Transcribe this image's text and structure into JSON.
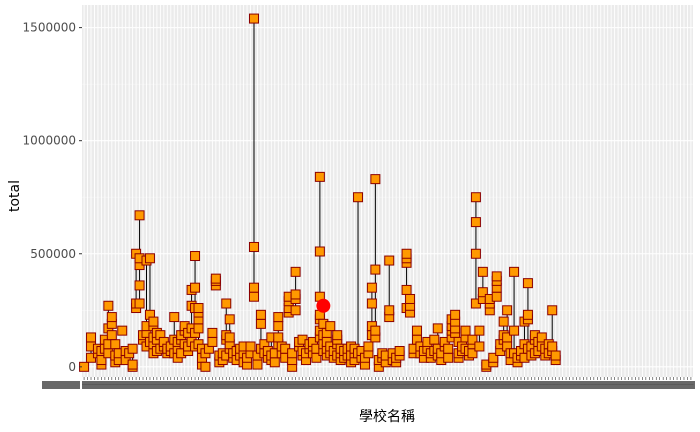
{
  "chart_data": {
    "type": "scatter",
    "title": "",
    "xlabel": "學校名稱",
    "ylabel": "total",
    "ylim": [
      -45000,
      1600000
    ],
    "yticks": [
      0,
      500000,
      1000000,
      1500000
    ],
    "ytick_labels": [
      "0",
      "500000",
      "1000000",
      "1500000"
    ],
    "x_category_count": 176,
    "x_category_label_placeholder": "一",
    "grid": true,
    "legend": "none",
    "colors": {
      "panel": "#ebebeb",
      "grid_major": "#ffffff",
      "grid_minor": "#f5f5f5",
      "point_fill": "#ff9900",
      "point_edge": "#8b0000",
      "range_line": "#000000",
      "highlight": "#ff0000"
    },
    "highlight_point": {
      "x": 70,
      "y": 270000
    },
    "schools": [
      {
        "x": 1,
        "values": [
          0
        ]
      },
      {
        "x": 3,
        "values": [
          40000,
          90000,
          130000
        ]
      },
      {
        "x": 5,
        "values": [
          60000,
          80000
        ]
      },
      {
        "x": 6,
        "values": [
          10000,
          30000,
          70000
        ]
      },
      {
        "x": 7,
        "values": [
          80000,
          120000
        ]
      },
      {
        "x": 8,
        "values": [
          60000,
          100000,
          170000,
          270000
        ]
      },
      {
        "x": 9,
        "values": [
          140000,
          190000,
          220000
        ]
      },
      {
        "x": 10,
        "values": [
          20000,
          50000,
          100000
        ]
      },
      {
        "x": 11,
        "values": [
          30000,
          60000
        ]
      },
      {
        "x": 12,
        "values": [
          160000
        ]
      },
      {
        "x": 13,
        "values": [
          30000,
          70000
        ]
      },
      {
        "x": 14,
        "values": [
          60000
        ]
      },
      {
        "x": 15,
        "values": [
          0,
          10000,
          80000
        ]
      },
      {
        "x": 16,
        "values": [
          260000,
          280000,
          500000
        ]
      },
      {
        "x": 17,
        "values": [
          280000,
          360000,
          450000,
          480000,
          670000
        ]
      },
      {
        "x": 18,
        "values": [
          120000,
          140000
        ]
      },
      {
        "x": 19,
        "values": [
          90000,
          150000,
          180000,
          470000
        ]
      },
      {
        "x": 20,
        "values": [
          110000,
          230000,
          480000
        ]
      },
      {
        "x": 21,
        "values": [
          60000,
          100000,
          130000,
          180000,
          200000
        ]
      },
      {
        "x": 22,
        "values": [
          70000,
          120000,
          150000
        ]
      },
      {
        "x": 23,
        "values": [
          80000,
          140000
        ]
      },
      {
        "x": 24,
        "values": [
          90000,
          110000
        ]
      },
      {
        "x": 25,
        "values": [
          60000,
          80000
        ]
      },
      {
        "x": 26,
        "values": [
          70000,
          90000
        ]
      },
      {
        "x": 27,
        "values": [
          60000,
          120000,
          220000
        ]
      },
      {
        "x": 28,
        "values": [
          40000,
          80000,
          110000
        ]
      },
      {
        "x": 29,
        "values": [
          60000,
          120000,
          140000
        ]
      },
      {
        "x": 30,
        "values": [
          100000,
          160000,
          180000
        ]
      },
      {
        "x": 31,
        "values": [
          70000,
          90000,
          150000
        ]
      },
      {
        "x": 32,
        "values": [
          110000,
          170000,
          270000,
          340000
        ]
      },
      {
        "x": 33,
        "values": [
          90000,
          150000,
          260000,
          350000,
          490000
        ]
      },
      {
        "x": 34,
        "values": [
          100000,
          170000,
          210000,
          240000,
          260000
        ]
      },
      {
        "x": 35,
        "values": [
          10000,
          40000,
          80000
        ]
      },
      {
        "x": 36,
        "values": [
          0,
          60000
        ]
      },
      {
        "x": 37,
        "values": [
          80000
        ]
      },
      {
        "x": 38,
        "values": [
          110000,
          150000
        ]
      },
      {
        "x": 39,
        "values": [
          360000,
          380000,
          390000
        ]
      },
      {
        "x": 40,
        "values": [
          20000,
          50000
        ]
      },
      {
        "x": 41,
        "values": [
          30000,
          60000
        ]
      },
      {
        "x": 42,
        "values": [
          50000,
          120000,
          140000,
          280000
        ]
      },
      {
        "x": 43,
        "values": [
          80000,
          100000,
          130000,
          210000
        ]
      },
      {
        "x": 44,
        "values": [
          40000,
          60000
        ]
      },
      {
        "x": 45,
        "values": [
          30000,
          70000
        ]
      },
      {
        "x": 46,
        "values": [
          50000,
          80000
        ]
      },
      {
        "x": 47,
        "values": [
          20000,
          60000,
          90000
        ]
      },
      {
        "x": 48,
        "values": [
          10000,
          40000
        ]
      },
      {
        "x": 49,
        "values": [
          60000,
          90000
        ]
      },
      {
        "x": 50,
        "values": [
          310000,
          350000,
          530000,
          1540000
        ]
      },
      {
        "x": 51,
        "values": [
          10000,
          50000
        ]
      },
      {
        "x": 52,
        "values": [
          80000,
          190000,
          230000
        ]
      },
      {
        "x": 53,
        "values": [
          60000,
          100000
        ]
      },
      {
        "x": 54,
        "values": [
          40000,
          70000
        ]
      },
      {
        "x": 55,
        "values": [
          30000,
          50000,
          130000
        ]
      },
      {
        "x": 56,
        "values": [
          20000,
          60000
        ]
      },
      {
        "x": 57,
        "values": [
          100000,
          130000,
          180000,
          220000
        ]
      },
      {
        "x": 58,
        "values": [
          60000,
          90000
        ]
      },
      {
        "x": 59,
        "values": [
          40000,
          80000
        ]
      },
      {
        "x": 60,
        "values": [
          240000,
          260000,
          290000,
          310000
        ]
      },
      {
        "x": 61,
        "values": [
          0,
          30000,
          60000
        ]
      },
      {
        "x": 62,
        "values": [
          250000,
          300000,
          320000,
          420000
        ]
      },
      {
        "x": 63,
        "values": [
          90000,
          110000
        ]
      },
      {
        "x": 64,
        "values": [
          50000,
          70000,
          120000
        ]
      },
      {
        "x": 65,
        "values": [
          30000,
          60000
        ]
      },
      {
        "x": 66,
        "values": [
          80000,
          100000
        ]
      },
      {
        "x": 67,
        "values": [
          60000,
          90000,
          110000
        ]
      },
      {
        "x": 68,
        "values": [
          40000,
          80000
        ]
      },
      {
        "x": 69,
        "values": [
          130000,
          160000,
          210000,
          230000,
          310000,
          510000,
          840000
        ]
      },
      {
        "x": 70,
        "values": [
          70000,
          100000,
          140000,
          190000
        ]
      },
      {
        "x": 71,
        "values": [
          50000,
          80000,
          110000,
          150000
        ]
      },
      {
        "x": 72,
        "values": [
          60000,
          90000,
          180000
        ]
      },
      {
        "x": 73,
        "values": [
          40000,
          70000
        ]
      },
      {
        "x": 74,
        "values": [
          50000,
          100000,
          120000,
          140000
        ]
      },
      {
        "x": 75,
        "values": [
          30000,
          60000,
          80000
        ]
      },
      {
        "x": 76,
        "values": [
          40000,
          70000
        ]
      },
      {
        "x": 77,
        "values": [
          50000,
          80000
        ]
      },
      {
        "x": 78,
        "values": [
          20000,
          50000,
          90000
        ]
      },
      {
        "x": 79,
        "values": [
          30000,
          60000,
          80000
        ]
      },
      {
        "x": 80,
        "values": [
          60000,
          750000
        ]
      },
      {
        "x": 81,
        "values": [
          40000,
          70000
        ]
      },
      {
        "x": 82,
        "values": [
          10000,
          40000
        ]
      },
      {
        "x": 83,
        "values": [
          60000,
          90000
        ]
      },
      {
        "x": 84,
        "values": [
          140000,
          180000,
          280000,
          350000
        ]
      },
      {
        "x": 85,
        "values": [
          130000,
          160000,
          430000,
          830000
        ]
      },
      {
        "x": 86,
        "values": [
          0,
          30000
        ]
      },
      {
        "x": 87,
        "values": [
          40000,
          60000
        ]
      },
      {
        "x": 88,
        "values": [
          20000,
          50000
        ]
      },
      {
        "x": 89,
        "values": [
          220000,
          250000,
          470000
        ]
      },
      {
        "x": 90,
        "values": [
          30000,
          60000
        ]
      },
      {
        "x": 91,
        "values": [
          20000,
          40000
        ]
      },
      {
        "x": 92,
        "values": [
          50000,
          70000
        ]
      },
      {
        "x": 94,
        "values": [
          260000,
          340000,
          460000,
          480000,
          500000
        ]
      },
      {
        "x": 95,
        "values": [
          240000,
          270000,
          300000
        ]
      },
      {
        "x": 96,
        "values": [
          60000,
          80000
        ]
      },
      {
        "x": 97,
        "values": [
          120000,
          160000
        ]
      },
      {
        "x": 98,
        "values": [
          60000,
          90000
        ]
      },
      {
        "x": 99,
        "values": [
          40000,
          70000
        ]
      },
      {
        "x": 100,
        "values": [
          80000,
          110000
        ]
      },
      {
        "x": 101,
        "values": [
          40000,
          60000
        ]
      },
      {
        "x": 102,
        "values": [
          70000,
          120000
        ]
      },
      {
        "x": 103,
        "values": [
          50000,
          80000,
          170000
        ]
      },
      {
        "x": 104,
        "values": [
          30000,
          60000
        ]
      },
      {
        "x": 105,
        "values": [
          90000,
          110000
        ]
      },
      {
        "x": 106,
        "values": [
          40000,
          80000
        ]
      },
      {
        "x": 107,
        "values": [
          130000,
          160000,
          180000,
          210000
        ]
      },
      {
        "x": 108,
        "values": [
          150000,
          170000,
          200000,
          230000
        ]
      },
      {
        "x": 109,
        "values": [
          40000,
          60000,
          110000
        ]
      },
      {
        "x": 110,
        "values": [
          70000,
          90000
        ]
      },
      {
        "x": 111,
        "values": [
          80000,
          130000,
          160000
        ]
      },
      {
        "x": 112,
        "values": [
          50000,
          70000
        ]
      },
      {
        "x": 113,
        "values": [
          60000,
          100000,
          120000
        ]
      },
      {
        "x": 114,
        "values": [
          280000,
          500000,
          640000,
          750000
        ]
      },
      {
        "x": 115,
        "values": [
          90000,
          160000
        ]
      },
      {
        "x": 116,
        "values": [
          300000,
          330000,
          420000
        ]
      },
      {
        "x": 117,
        "values": [
          0,
          10000
        ]
      },
      {
        "x": 118,
        "values": [
          250000,
          280000,
          300000
        ]
      },
      {
        "x": 119,
        "values": [
          20000,
          40000
        ]
      },
      {
        "x": 120,
        "values": [
          310000,
          350000,
          380000,
          400000
        ]
      },
      {
        "x": 121,
        "values": [
          70000,
          100000
        ]
      },
      {
        "x": 122,
        "values": [
          120000,
          140000,
          200000
        ]
      },
      {
        "x": 123,
        "values": [
          90000,
          130000,
          250000
        ]
      },
      {
        "x": 124,
        "values": [
          30000,
          60000
        ]
      },
      {
        "x": 125,
        "values": [
          60000,
          160000,
          420000
        ]
      },
      {
        "x": 126,
        "values": [
          20000,
          40000
        ]
      },
      {
        "x": 127,
        "values": [
          50000,
          70000
        ]
      },
      {
        "x": 128,
        "values": [
          40000,
          100000,
          200000
        ]
      },
      {
        "x": 129,
        "values": [
          80000,
          210000,
          230000,
          370000
        ]
      },
      {
        "x": 130,
        "values": [
          50000,
          90000
        ]
      },
      {
        "x": 131,
        "values": [
          60000,
          120000,
          140000
        ]
      },
      {
        "x": 132,
        "values": [
          70000,
          110000
        ]
      },
      {
        "x": 133,
        "values": [
          90000,
          130000
        ]
      },
      {
        "x": 134,
        "values": [
          50000,
          80000
        ]
      },
      {
        "x": 135,
        "values": [
          60000,
          100000
        ]
      },
      {
        "x": 136,
        "values": [
          70000,
          90000,
          250000
        ]
      },
      {
        "x": 137,
        "values": [
          30000,
          50000
        ]
      }
    ]
  }
}
